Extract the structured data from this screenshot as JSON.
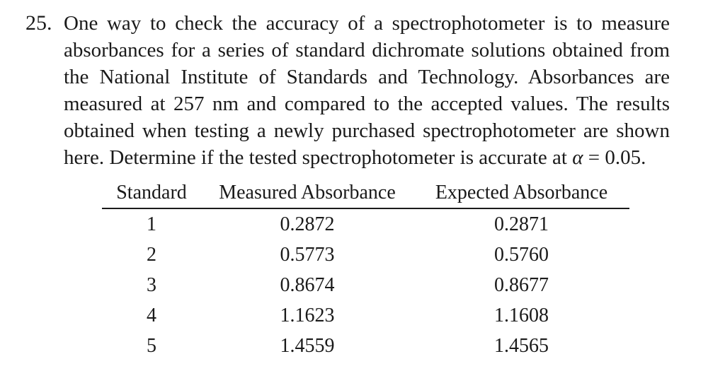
{
  "problem": {
    "number": "25.",
    "lines": [
      "One way to check the accuracy of a spectrophotometer is to measure",
      "absorbances for a series of standard dichromate solutions obtained from",
      "the National Institute of Standards and Technology. Absorbances are",
      "measured at 257 nm and compared to the accepted values. The results",
      "obtained when testing a newly purchased spectrophotometer are shown"
    ],
    "last_line_prefix": "here. Determine if the tested spectrophotometer is accurate at ",
    "alpha_symbol": "α",
    "alpha_rest": " = 0.05."
  },
  "table": {
    "headers": [
      "Standard",
      "Measured Absorbance",
      "Expected Absorbance"
    ],
    "rows": [
      [
        "1",
        "0.2872",
        "0.2871"
      ],
      [
        "2",
        "0.5773",
        "0.5760"
      ],
      [
        "3",
        "0.8674",
        "0.8677"
      ],
      [
        "4",
        "1.1623",
        "1.1608"
      ],
      [
        "5",
        "1.4559",
        "1.4565"
      ]
    ]
  }
}
